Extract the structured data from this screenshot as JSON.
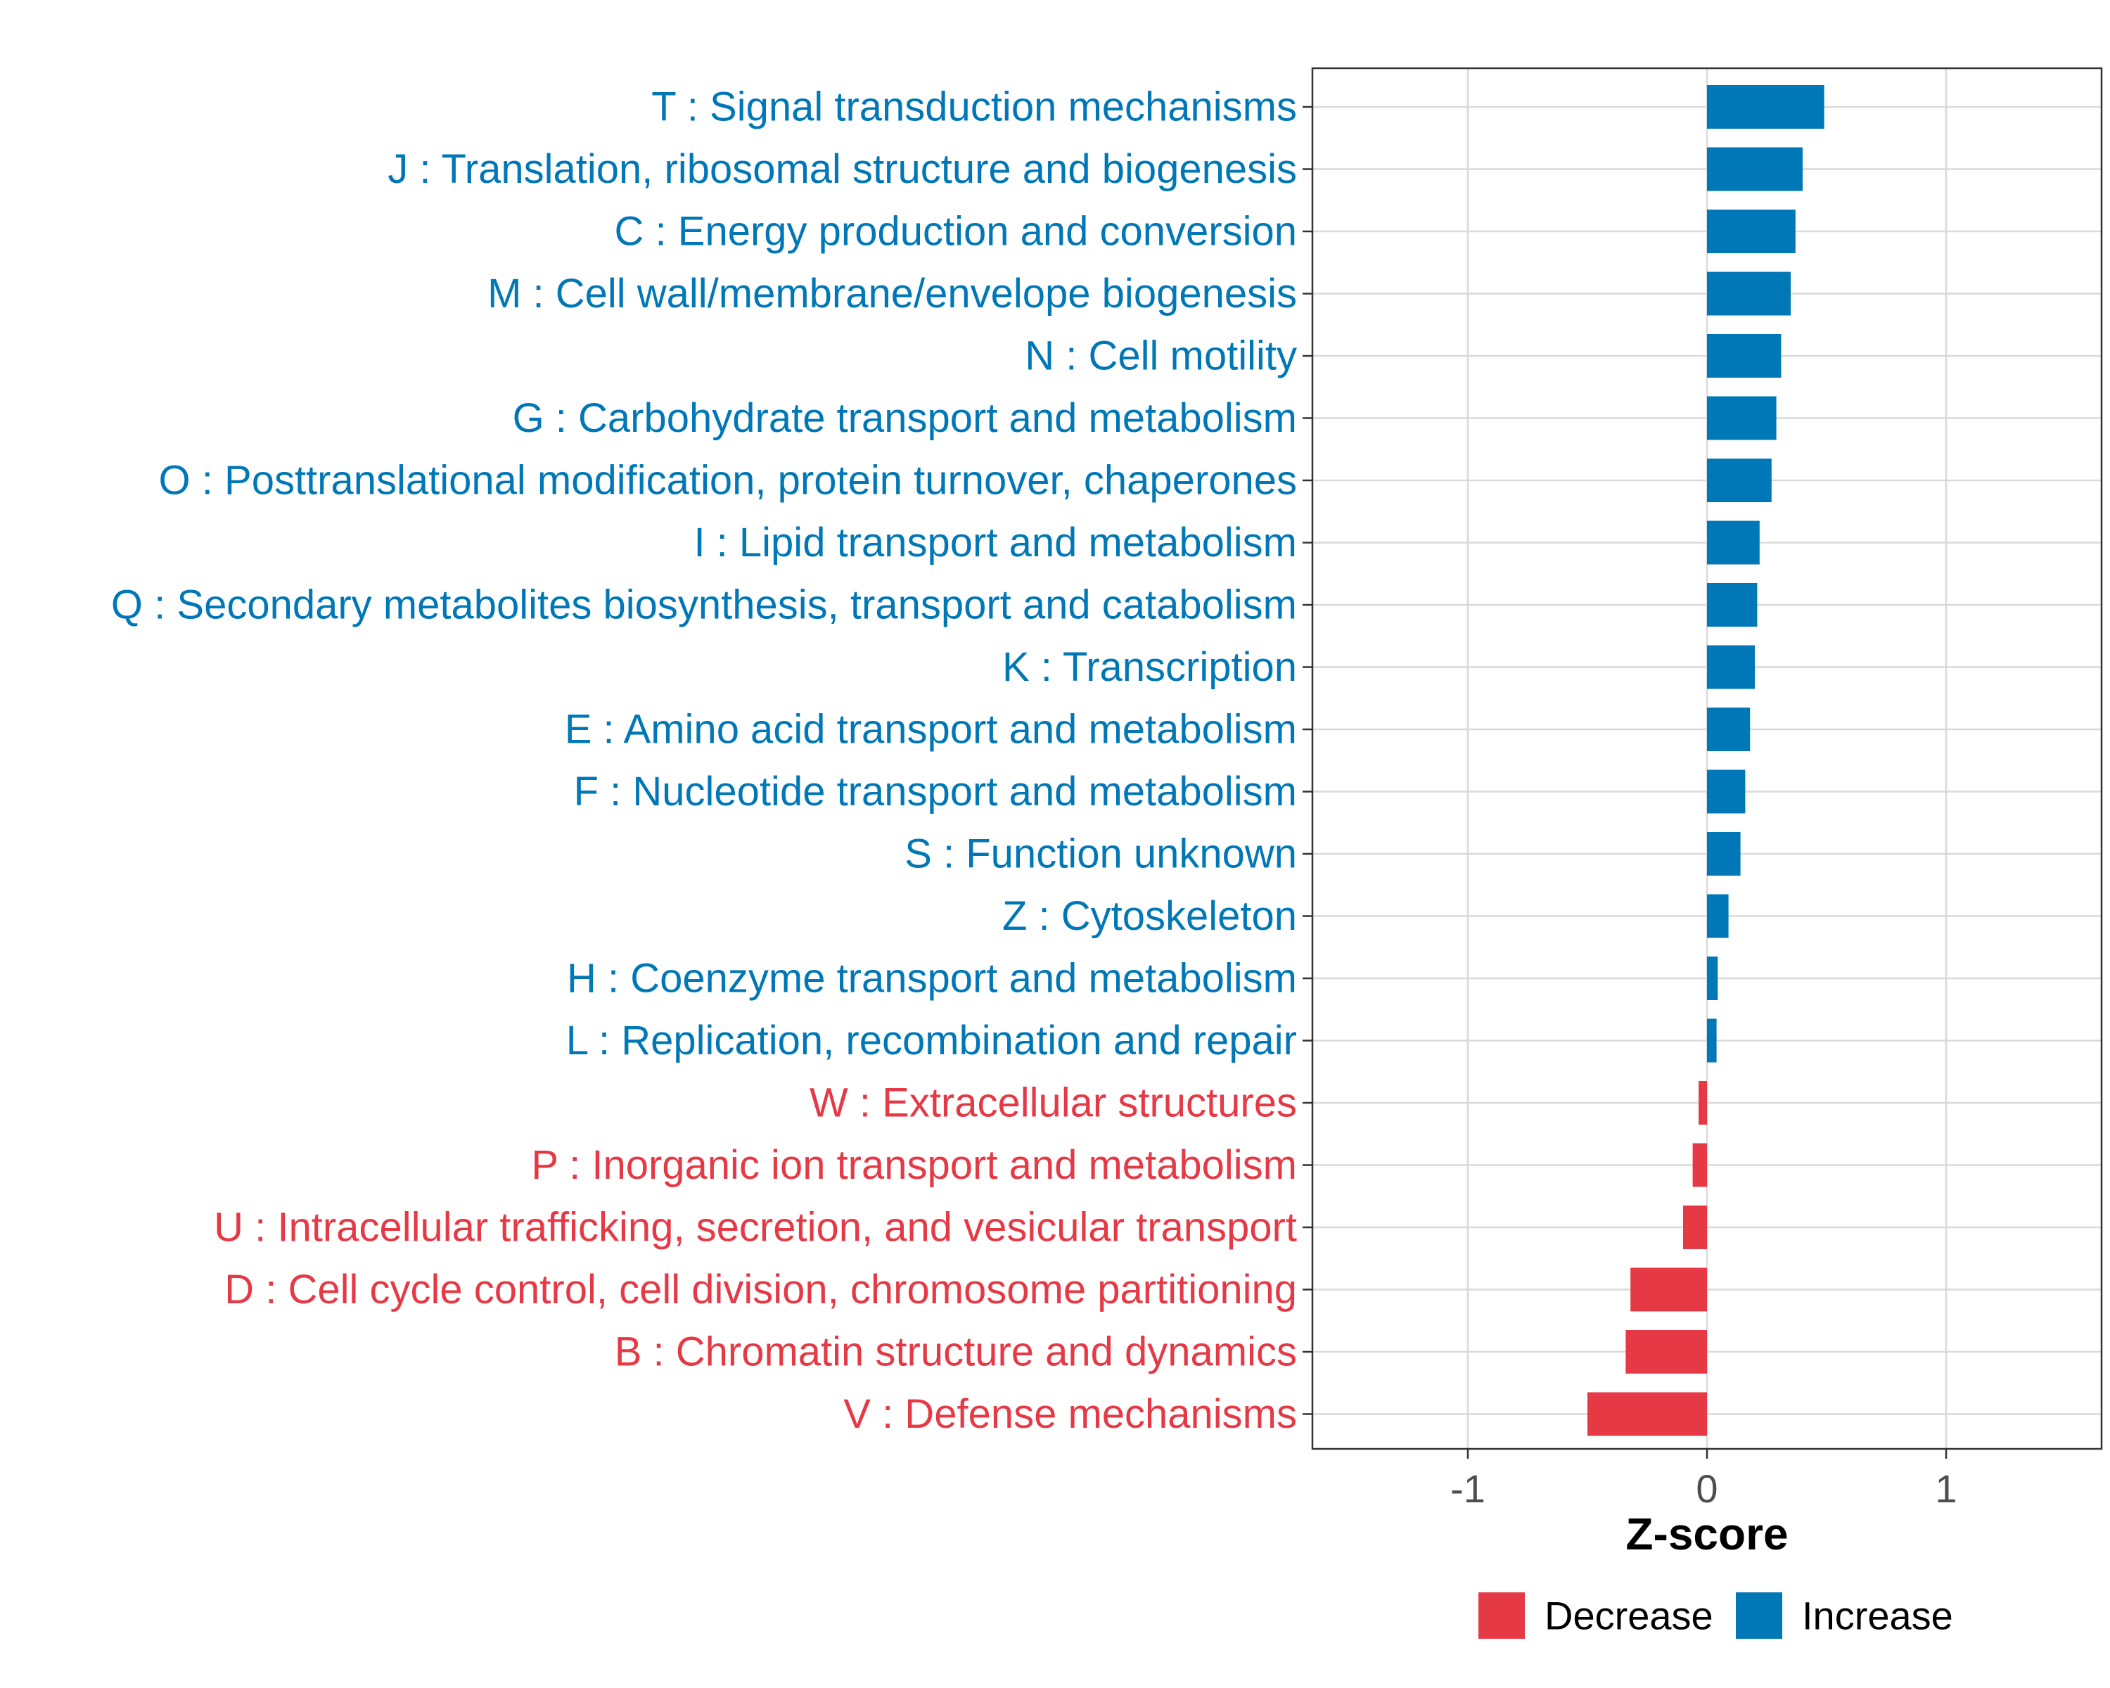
{
  "chart_data": {
    "type": "bar",
    "orientation": "horizontal",
    "xlabel": "Z-score",
    "xlim": [
      -1.65,
      1.65
    ],
    "xticks": [
      -1,
      0,
      1
    ],
    "xtick_labels": [
      "-1",
      "0",
      "1"
    ],
    "grid": true,
    "colors": {
      "Decrease": "#e63946",
      "Increase": "#0077b6"
    },
    "categories": [
      {
        "label": "T : Signal transduction mechanisms",
        "value": 0.49,
        "group": "Increase"
      },
      {
        "label": "J : Translation, ribosomal structure and biogenesis",
        "value": 0.4,
        "group": "Increase"
      },
      {
        "label": "C : Energy production and conversion",
        "value": 0.37,
        "group": "Increase"
      },
      {
        "label": "M : Cell wall/membrane/envelope biogenesis",
        "value": 0.35,
        "group": "Increase"
      },
      {
        "label": "N : Cell motility",
        "value": 0.31,
        "group": "Increase"
      },
      {
        "label": "G : Carbohydrate transport and metabolism",
        "value": 0.29,
        "group": "Increase"
      },
      {
        "label": "O : Posttranslational modification, protein turnover, chaperones",
        "value": 0.27,
        "group": "Increase"
      },
      {
        "label": "I : Lipid transport and metabolism",
        "value": 0.22,
        "group": "Increase"
      },
      {
        "label": "Q : Secondary metabolites biosynthesis, transport and catabolism",
        "value": 0.21,
        "group": "Increase"
      },
      {
        "label": "K : Transcription",
        "value": 0.2,
        "group": "Increase"
      },
      {
        "label": "E : Amino acid transport and metabolism",
        "value": 0.18,
        "group": "Increase"
      },
      {
        "label": "F : Nucleotide transport and metabolism",
        "value": 0.16,
        "group": "Increase"
      },
      {
        "label": "S : Function unknown",
        "value": 0.14,
        "group": "Increase"
      },
      {
        "label": "Z : Cytoskeleton",
        "value": 0.09,
        "group": "Increase"
      },
      {
        "label": "H : Coenzyme transport and metabolism",
        "value": 0.045,
        "group": "Increase"
      },
      {
        "label": "L : Replication, recombination and repair",
        "value": 0.04,
        "group": "Increase"
      },
      {
        "label": "W : Extracellular structures",
        "value": -0.035,
        "group": "Decrease"
      },
      {
        "label": "P : Inorganic ion transport and metabolism",
        "value": -0.06,
        "group": "Decrease"
      },
      {
        "label": "U : Intracellular trafficking, secretion, and vesicular transport",
        "value": -0.1,
        "group": "Decrease"
      },
      {
        "label": "D : Cell cycle control, cell division, chromosome partitioning",
        "value": -0.32,
        "group": "Decrease"
      },
      {
        "label": "B : Chromatin structure and dynamics",
        "value": -0.34,
        "group": "Decrease"
      },
      {
        "label": "V : Defense mechanisms",
        "value": -0.5,
        "group": "Decrease"
      }
    ],
    "legend": {
      "position": "bottom",
      "entries": [
        {
          "label": "Decrease",
          "color": "#e63946"
        },
        {
          "label": "Increase",
          "color": "#0077b6"
        }
      ]
    }
  }
}
